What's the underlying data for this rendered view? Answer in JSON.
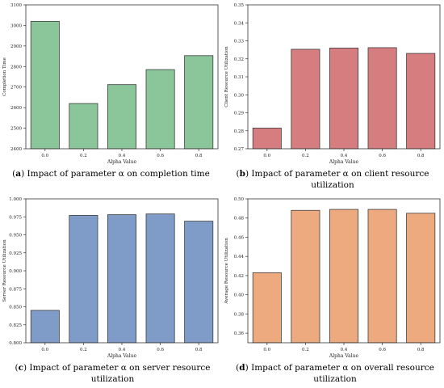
{
  "chart_data": [
    {
      "type": "bar",
      "panel_letter": "a",
      "caption_text": "Impact of parameter α on completion time",
      "categories": [
        "0.0",
        "0.2",
        "0.4",
        "0.6",
        "0.8"
      ],
      "values": [
        3020,
        2620,
        2712,
        2785,
        2853
      ],
      "xlabel": "Alpha Value",
      "ylabel": "Completion Time",
      "ylim": [
        2400,
        3100
      ],
      "yticks": [
        "2400",
        "2500",
        "2600",
        "2700",
        "2800",
        "2900",
        "3000",
        "3100"
      ],
      "bar_color": "#8bc59a",
      "edge_color": "#3d3d3d",
      "grid": false
    },
    {
      "type": "bar",
      "panel_letter": "b",
      "caption_text": "Impact of parameter α on client resource utilization",
      "categories": [
        "0.0",
        "0.2",
        "0.4",
        "0.6",
        "0.8"
      ],
      "values": [
        0.2815,
        0.3253,
        0.326,
        0.3262,
        0.323
      ],
      "xlabel": "Alpha Value",
      "ylabel": "Client Resource Utilization",
      "ylim": [
        0.27,
        0.35
      ],
      "yticks": [
        "0.27",
        "0.28",
        "0.29",
        "0.30",
        "0.31",
        "0.32",
        "0.33",
        "0.34",
        "0.35"
      ],
      "bar_color": "#d67d80",
      "edge_color": "#3d3d3d",
      "grid": false
    },
    {
      "type": "bar",
      "panel_letter": "c",
      "caption_text": "Impact of parameter α on server resource utilization",
      "categories": [
        "0.0",
        "0.2",
        "0.4",
        "0.6",
        "0.8"
      ],
      "values": [
        0.845,
        0.977,
        0.978,
        0.979,
        0.969
      ],
      "xlabel": "Alpha Value",
      "ylabel": "Server Resource Utilization",
      "ylim": [
        0.8,
        1.0
      ],
      "yticks": [
        "0.800",
        "0.825",
        "0.850",
        "0.875",
        "0.900",
        "0.925",
        "0.950",
        "0.975",
        "1.000"
      ],
      "bar_color": "#7f9cc8",
      "edge_color": "#3d3d3d",
      "grid": false
    },
    {
      "type": "bar",
      "panel_letter": "d",
      "caption_text": "Impact of parameter α on overall resource utilization",
      "categories": [
        "0.0",
        "0.2",
        "0.4",
        "0.6",
        "0.8"
      ],
      "values": [
        0.423,
        0.488,
        0.489,
        0.489,
        0.485
      ],
      "xlabel": "Alpha Value",
      "ylabel": "Average Resource Utilization",
      "ylim": [
        0.35,
        0.5
      ],
      "yticks": [
        "0.36",
        "0.38",
        "0.40",
        "0.42",
        "0.44",
        "0.46",
        "0.48",
        "0.50"
      ],
      "bar_color": "#eeaa7f",
      "edge_color": "#3d3d3d",
      "grid": false
    }
  ]
}
